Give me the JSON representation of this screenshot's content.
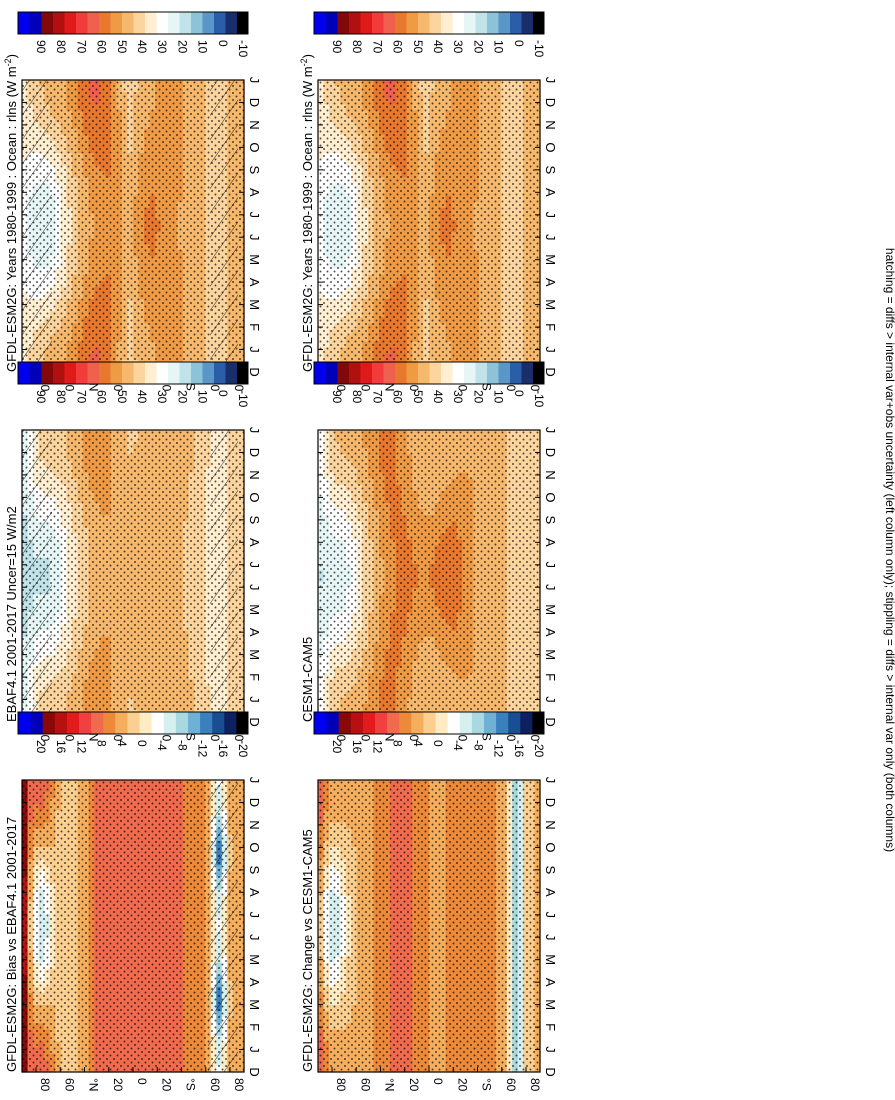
{
  "figure": {
    "footnote": "hatching = diffs > internal var+obs uncertainty (left column only); stippling = diffs > internal var only (both columns)"
  },
  "chart_data": [
    {
      "type": "heatmap",
      "title": "GFDL-ESM2G: Years 1980-1999 : Ocean : rlns (W m",
      "title_sup": "-2",
      "title_end": ")",
      "x_categories": [
        "D",
        "J",
        "F",
        "M",
        "A",
        "M",
        "J",
        "J",
        "A",
        "S",
        "O",
        "N",
        "D",
        "J"
      ],
      "y_ticks": [
        "80",
        "60",
        "°N",
        "20",
        "0",
        "20",
        "°S",
        "60",
        "80"
      ],
      "colorbar_labels": [
        "90",
        "80",
        "70",
        "60",
        "50",
        "40",
        "30",
        "20",
        "10",
        "0",
        "-10"
      ],
      "colormap": "absolute",
      "value_range": [
        -10,
        100
      ],
      "pattern": "base",
      "hatching": "partial"
    },
    {
      "type": "heatmap",
      "title": "GFDL-ESM2G: Years 1980-1999 : Ocean : rlns (W m",
      "title_sup": "-2",
      "title_end": ")",
      "x_categories": [
        "D",
        "J",
        "F",
        "M",
        "A",
        "M",
        "J",
        "J",
        "A",
        "S",
        "O",
        "N",
        "D",
        "J"
      ],
      "y_ticks": [
        "80",
        "60",
        "°N",
        "20",
        "0",
        "20",
        "°S",
        "60",
        "80"
      ],
      "colorbar_labels": [
        "90",
        "80",
        "70",
        "60",
        "50",
        "40",
        "30",
        "20",
        "10",
        "0",
        "-10"
      ],
      "colormap": "absolute",
      "value_range": [
        -10,
        100
      ],
      "pattern": "base",
      "hatching": "none"
    },
    {
      "type": "heatmap",
      "title": "EBAF4.1 2001-2017 Uncer=15 W/m2",
      "x_categories": [
        "D",
        "J",
        "F",
        "M",
        "A",
        "M",
        "J",
        "J",
        "A",
        "S",
        "O",
        "N",
        "D",
        "J"
      ],
      "y_ticks": [
        "80",
        "60",
        "°N",
        "20",
        "0",
        "20",
        "°S",
        "60",
        "80"
      ],
      "colorbar_labels": [
        "90",
        "80",
        "70",
        "60",
        "50",
        "40",
        "30",
        "20",
        "10",
        "0",
        "-10"
      ],
      "colormap": "absolute",
      "value_range": [
        -10,
        100
      ],
      "pattern": "obs",
      "hatching": "edges"
    },
    {
      "type": "heatmap",
      "title": "CESM1-CAM5",
      "x_categories": [
        "D",
        "J",
        "F",
        "M",
        "A",
        "M",
        "J",
        "J",
        "A",
        "S",
        "O",
        "N",
        "D",
        "J"
      ],
      "y_ticks": [
        "80",
        "60",
        "°N",
        "20",
        "0",
        "20",
        "°S",
        "60",
        "80"
      ],
      "colorbar_labels": [
        "90",
        "80",
        "70",
        "60",
        "50",
        "40",
        "30",
        "20",
        "10",
        "0",
        "-10"
      ],
      "colormap": "absolute",
      "value_range": [
        -10,
        100
      ],
      "pattern": "cesm",
      "hatching": "none"
    },
    {
      "type": "heatmap",
      "title": "GFDL-ESM2G: Bias vs EBAF4.1 2001-2017",
      "x_categories": [
        "D",
        "J",
        "F",
        "M",
        "A",
        "M",
        "J",
        "J",
        "A",
        "S",
        "O",
        "N",
        "D",
        "J"
      ],
      "y_ticks": [
        "80",
        "60",
        "°N",
        "20",
        "0",
        "20",
        "°S",
        "60",
        "80"
      ],
      "colorbar_labels": [
        "20",
        "16",
        "12",
        "8",
        "4",
        "0",
        "-4",
        "-8",
        "-12",
        "-16",
        "-20"
      ],
      "colormap": "difference",
      "value_range": [
        -22,
        22
      ],
      "pattern": "bias",
      "hatching": "south"
    },
    {
      "type": "heatmap",
      "title": "GFDL-ESM2G: Change vs CESM1-CAM5",
      "x_categories": [
        "D",
        "J",
        "F",
        "M",
        "A",
        "M",
        "J",
        "J",
        "A",
        "S",
        "O",
        "N",
        "D",
        "J"
      ],
      "y_ticks": [
        "80",
        "60",
        "°N",
        "20",
        "0",
        "20",
        "°S",
        "60",
        "80"
      ],
      "colorbar_labels": [
        "20",
        "16",
        "12",
        "8",
        "4",
        "0",
        "-4",
        "-8",
        "-12",
        "-16",
        "-20"
      ],
      "colormap": "difference",
      "value_range": [
        -22,
        22
      ],
      "pattern": "change",
      "hatching": "none"
    }
  ],
  "colors": {
    "absolute": [
      "#000000",
      "#1a2e6b",
      "#2b5ea8",
      "#5b96c8",
      "#8cc3d8",
      "#bfe3e8",
      "#e6f6f6",
      "#ffffff",
      "#ffeed0",
      "#fbd49e",
      "#f6b86c",
      "#ef9a44",
      "#e8782e",
      "#f0604e",
      "#f23b3b",
      "#e01a1a",
      "#b01010",
      "#820909",
      "#0000b8",
      "#0000ee"
    ],
    "difference": [
      "#000000",
      "#0d2060",
      "#1a4e92",
      "#3a80bc",
      "#6fb1d4",
      "#a8d8e0",
      "#d6efef",
      "#ffffff",
      "#ffecc4",
      "#fbcf90",
      "#f5ae5d",
      "#ed8a3a",
      "#f06a4e",
      "#f04040",
      "#e21c1c",
      "#b81010",
      "#8a0808",
      "#0000b8",
      "#0000f0"
    ]
  }
}
